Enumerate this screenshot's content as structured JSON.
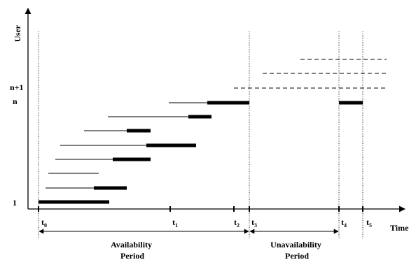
{
  "axes": {
    "y_title": "User",
    "x_title": "Time"
  },
  "y_labels": [
    "1",
    "n",
    "n+1"
  ],
  "time_marks": [
    {
      "base": "t",
      "sub": "0"
    },
    {
      "base": "t",
      "sub": "1"
    },
    {
      "base": "t",
      "sub": "2"
    },
    {
      "base": "t",
      "sub": "3"
    },
    {
      "base": "t",
      "sub": "4"
    },
    {
      "base": "t",
      "sub": "5"
    }
  ],
  "periods": {
    "availability": [
      "Availability",
      "Period"
    ],
    "unavailability": [
      "Unavailability",
      "Period"
    ]
  }
}
